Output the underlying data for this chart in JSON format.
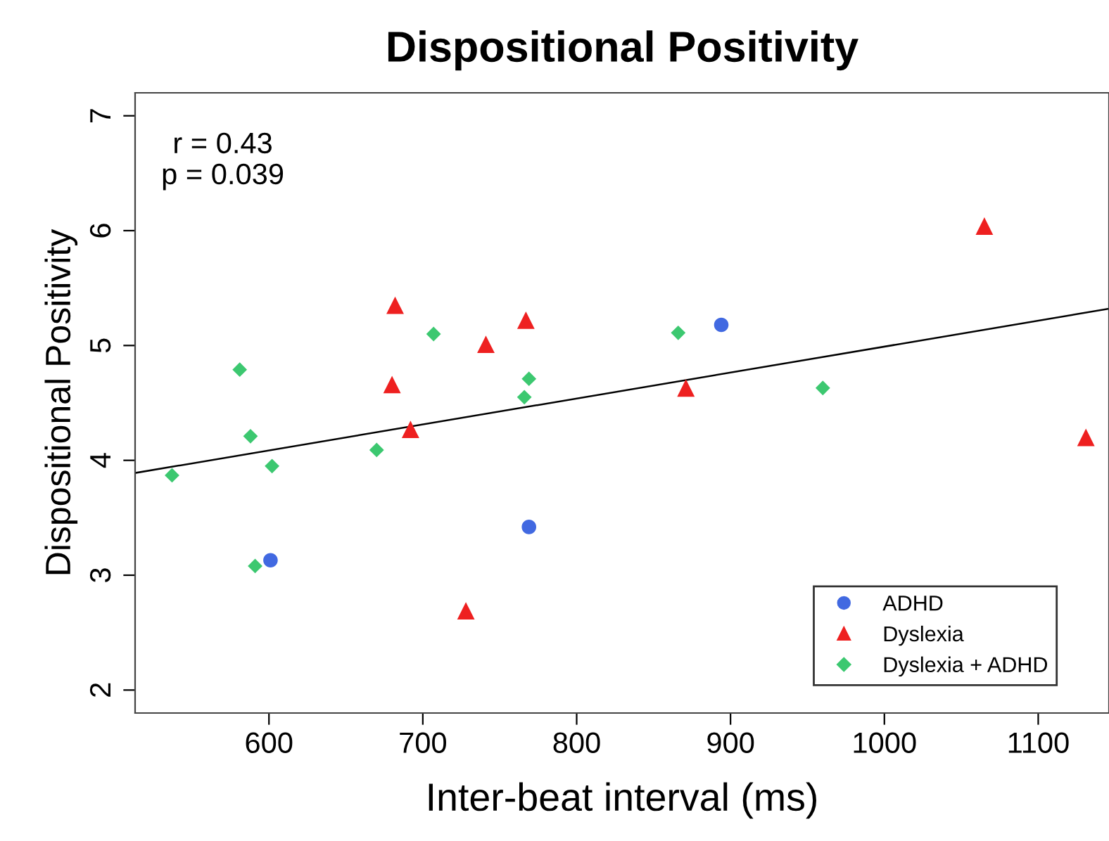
{
  "chart_data": {
    "type": "scatter",
    "title": "Dispositional Positivity",
    "xlabel": "Inter-beat interval (ms)",
    "ylabel": "Dispositional Positivity",
    "xlim": [
      513,
      1146
    ],
    "ylim": [
      1.8,
      7.2
    ],
    "xticks": [
      600,
      700,
      800,
      900,
      1000,
      1100
    ],
    "yticks": [
      2,
      3,
      4,
      5,
      6,
      7
    ],
    "grid": false,
    "legend": "bottom right",
    "annotations": [
      "r = 0.43",
      "p = 0.039"
    ],
    "series": [
      {
        "name": "ADHD",
        "color": "#4169e1",
        "marker": "circle",
        "x": [
          601,
          769,
          894
        ],
        "values": [
          3.13,
          3.42,
          5.18
        ]
      },
      {
        "name": "Dyslexia",
        "color": "#ee2020",
        "marker": "triangle",
        "x": [
          682,
          680,
          692,
          741,
          767,
          728,
          871,
          1065,
          1131
        ],
        "values": [
          5.35,
          4.66,
          4.27,
          5.01,
          5.22,
          2.69,
          4.63,
          6.04,
          4.2
        ]
      },
      {
        "name": "Dyslexia + ADHD",
        "color": "#3cc870",
        "marker": "diamond",
        "x": [
          537,
          581,
          588,
          602,
          591,
          670,
          707,
          766,
          769,
          866,
          960
        ],
        "values": [
          3.87,
          4.79,
          4.21,
          3.95,
          3.08,
          4.09,
          5.1,
          4.55,
          4.71,
          5.11,
          4.63
        ]
      },
      {
        "type": "line",
        "color": "#000000",
        "marker": "none",
        "line_style": "solid",
        "x": [
          513,
          1146
        ],
        "values": [
          3.89,
          5.32
        ]
      }
    ]
  }
}
